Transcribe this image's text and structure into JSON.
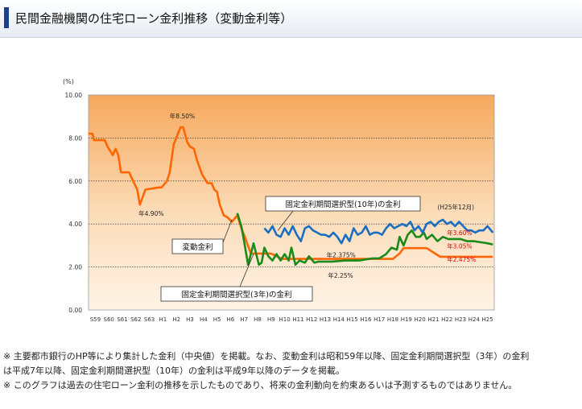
{
  "page": {
    "title": "民間金融機関の住宅ローン金利推移（変動金利等）"
  },
  "notes": [
    "※ 主要都市銀行のHP等により集計した金利（中央値）を掲載。なお、変動金利は昭和59年以降、固定金利期間選択型（3年）の金利",
    "は平成7年以降、固定金利期間選択型（10年）の金利は平成9年以降のデータを掲載。",
    "※ このグラフは過去の住宅ローン金利の推移を示したものであり、将来の金利動向を約束あるいは予測するものではありません。"
  ],
  "colors": {
    "variable": "#ff6600",
    "fixed3": "#1a8a1a",
    "fixed10": "#1a6fc0",
    "red_label": "#e00000"
  },
  "chart_data": {
    "type": "line",
    "ylabel": "(%)",
    "ylim": [
      0,
      10
    ],
    "yticks": [
      "0.00",
      "2.00",
      "4.00",
      "6.00",
      "8.00",
      "10.00"
    ],
    "xlim": [
      1984,
      2014
    ],
    "categories": [
      "S59",
      "S60",
      "S61",
      "S62",
      "S63",
      "H1",
      "H2",
      "H3",
      "H4",
      "H5",
      "H6",
      "H7",
      "H8",
      "H9",
      "H10",
      "H11",
      "H12",
      "H13",
      "H14",
      "H15",
      "H16",
      "H17",
      "H18",
      "H19",
      "H20",
      "H21",
      "H22",
      "H23",
      "H24",
      "H25"
    ],
    "series": [
      {
        "name": "変動金利",
        "color": "#ff6600",
        "x": [
          1984.0,
          1984.3,
          1984.4,
          1985.2,
          1985.4,
          1985.8,
          1986.0,
          1986.2,
          1986.4,
          1986.6,
          1987.0,
          1987.3,
          1987.6,
          1987.8,
          1988.2,
          1989.2,
          1989.4,
          1989.8,
          1990.0,
          1990.3,
          1990.8,
          1991.0,
          1991.3,
          1991.5,
          1991.8,
          1992.0,
          1992.4,
          1992.8,
          1993.1,
          1993.3,
          1993.5,
          1993.7,
          1994.0,
          1994.3,
          1994.6,
          1995.0,
          1995.3,
          1995.5,
          1996.0,
          1997.5,
          1998.3,
          2001.0,
          2001.5,
          2005.0,
          2006.5,
          2007.0,
          2007.3,
          2009.0,
          2010.0,
          2013.9
        ],
        "y": [
          8.2,
          8.2,
          7.9,
          7.9,
          7.6,
          7.2,
          7.5,
          7.2,
          6.4,
          6.4,
          6.4,
          6.0,
          5.6,
          4.9,
          5.6,
          5.7,
          5.7,
          6.0,
          6.4,
          7.7,
          8.5,
          8.5,
          7.8,
          7.6,
          7.5,
          7.0,
          6.3,
          5.9,
          5.9,
          5.6,
          5.5,
          4.9,
          4.4,
          4.3,
          4.1,
          4.4,
          3.8,
          3.5,
          2.625,
          2.625,
          2.375,
          2.375,
          2.375,
          2.375,
          2.375,
          2.625,
          2.875,
          2.875,
          2.475,
          2.475
        ]
      },
      {
        "name": "固定金利期間選択型(3年)",
        "color": "#1a8a1a",
        "x": [
          1995.0,
          1995.3,
          1995.5,
          1995.8,
          1996.0,
          1996.2,
          1996.4,
          1996.6,
          1996.8,
          1997.0,
          1997.3,
          1997.6,
          1997.9,
          1998.2,
          1998.5,
          1998.8,
          1999.0,
          1999.3,
          1999.6,
          2000.0,
          2000.3,
          2000.7,
          2001.0,
          2002.0,
          2003.0,
          2004.0,
          2005.0,
          2005.5,
          2006.0,
          2006.4,
          2006.8,
          2007.0,
          2007.3,
          2007.6,
          2007.9,
          2008.2,
          2008.5,
          2008.8,
          2009.0,
          2009.4,
          2009.8,
          2010.2,
          2010.6,
          2011.0,
          2011.5,
          2012.0,
          2012.5,
          2013.0,
          2013.5,
          2013.9
        ],
        "y": [
          4.5,
          3.9,
          3.2,
          2.1,
          2.6,
          3.1,
          2.6,
          2.1,
          2.2,
          2.9,
          2.5,
          2.3,
          2.6,
          2.3,
          2.6,
          2.3,
          2.9,
          2.1,
          2.3,
          2.2,
          2.5,
          2.2,
          2.25,
          2.25,
          2.3,
          2.3,
          2.4,
          2.4,
          2.6,
          2.9,
          2.8,
          3.4,
          3.0,
          3.5,
          3.7,
          3.4,
          3.4,
          3.6,
          3.3,
          3.5,
          3.2,
          3.4,
          3.3,
          3.3,
          3.3,
          3.2,
          3.2,
          3.15,
          3.1,
          3.05
        ]
      },
      {
        "name": "固定金利期間選択型(10年)",
        "color": "#1a6fc0",
        "x": [
          1997.0,
          1997.3,
          1997.6,
          1997.9,
          1998.2,
          1998.5,
          1998.8,
          1999.1,
          1999.4,
          1999.7,
          2000.0,
          2000.3,
          2000.6,
          2000.9,
          2001.2,
          2001.5,
          2001.8,
          2002.1,
          2002.4,
          2002.7,
          2003.0,
          2003.3,
          2003.6,
          2003.9,
          2004.2,
          2004.5,
          2004.8,
          2005.1,
          2005.4,
          2005.7,
          2006.0,
          2006.3,
          2006.6,
          2006.9,
          2007.2,
          2007.5,
          2007.8,
          2008.1,
          2008.4,
          2008.7,
          2009.0,
          2009.3,
          2009.6,
          2009.9,
          2010.2,
          2010.5,
          2010.8,
          2011.1,
          2011.4,
          2011.7,
          2012.0,
          2012.3,
          2012.6,
          2012.9,
          2013.2,
          2013.5,
          2013.9
        ],
        "y": [
          3.8,
          3.6,
          3.9,
          3.5,
          3.4,
          3.8,
          3.5,
          3.9,
          3.5,
          3.2,
          3.8,
          3.9,
          3.7,
          3.6,
          3.5,
          3.5,
          3.4,
          3.6,
          3.4,
          3.1,
          3.5,
          3.2,
          3.8,
          3.5,
          3.6,
          3.9,
          3.5,
          3.6,
          3.6,
          3.5,
          3.8,
          4.0,
          3.8,
          3.9,
          4.0,
          3.9,
          4.1,
          3.7,
          3.9,
          3.6,
          4.0,
          4.1,
          3.9,
          4.1,
          4.2,
          4.0,
          4.1,
          3.9,
          4.1,
          3.9,
          3.7,
          3.7,
          3.6,
          3.7,
          3.7,
          3.9,
          3.6
        ]
      }
    ],
    "annotations": {
      "peak": "年8.50%",
      "low": "年4.90%",
      "f3_low": "年2.25%",
      "var_low": "年2.375%",
      "date": "(H25年12月)",
      "end10": "年3.60%",
      "end3": "年3.05%",
      "endvar": "年2.475%"
    },
    "callouts": {
      "variable": "変動金利",
      "fixed3": "固定金利期間選択型(3年)の金利",
      "fixed10": "固定金利期間選択型(10年)の金利"
    }
  }
}
